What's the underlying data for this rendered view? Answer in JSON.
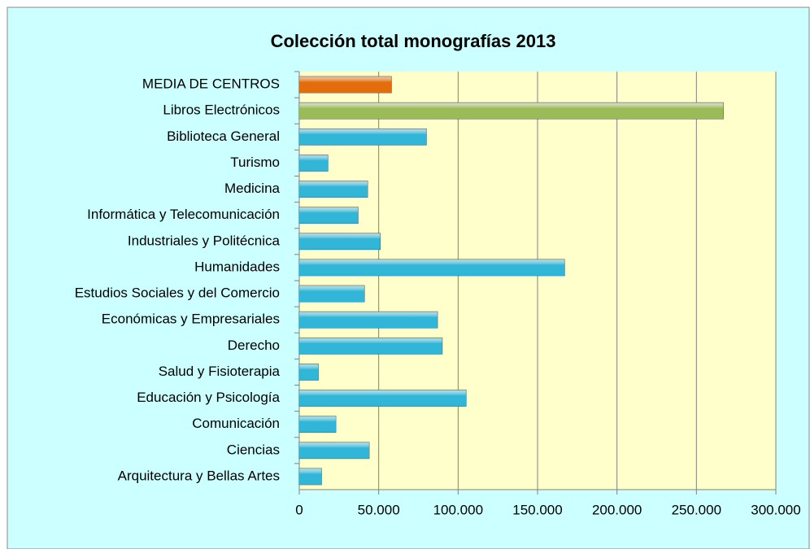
{
  "chart_data": {
    "type": "bar",
    "orientation": "horizontal",
    "title": "Colección total monografías 2013",
    "categories": [
      "MEDIA DE CENTROS",
      "Libros Electrónicos",
      "Biblioteca General",
      "Turismo",
      "Medicina",
      "Informática y Telecomunicación",
      "Industriales y Politécnica",
      "Humanidades",
      "Estudios Sociales y del Comercio",
      "Económicas y Empresariales",
      "Derecho",
      "Salud y Fisioterapia",
      "Educación y Psicología",
      "Comunicación",
      "Ciencias",
      "Arquitectura y Bellas Artes"
    ],
    "values": [
      58000,
      267000,
      80000,
      18000,
      43000,
      37000,
      51000,
      167000,
      41000,
      87000,
      90000,
      12000,
      105000,
      23000,
      44000,
      14000
    ],
    "colors": [
      "#e46c0a",
      "#9bbb59",
      "#31b6d8",
      "#31b6d8",
      "#31b6d8",
      "#31b6d8",
      "#31b6d8",
      "#31b6d8",
      "#31b6d8",
      "#31b6d8",
      "#31b6d8",
      "#31b6d8",
      "#31b6d8",
      "#31b6d8",
      "#31b6d8",
      "#31b6d8"
    ],
    "xlim": [
      0,
      300000
    ],
    "xticks": [
      0,
      {
        "value": 50000,
        "label": "50.000"
      },
      {
        "value": 100000,
        "label": "100.000"
      },
      {
        "value": 150000,
        "label": "150.000"
      },
      {
        "value": 200000,
        "label": "200.000"
      },
      {
        "value": 250000,
        "label": "250.000"
      },
      {
        "value": 300000,
        "label": "300.000"
      }
    ],
    "grid": true
  }
}
